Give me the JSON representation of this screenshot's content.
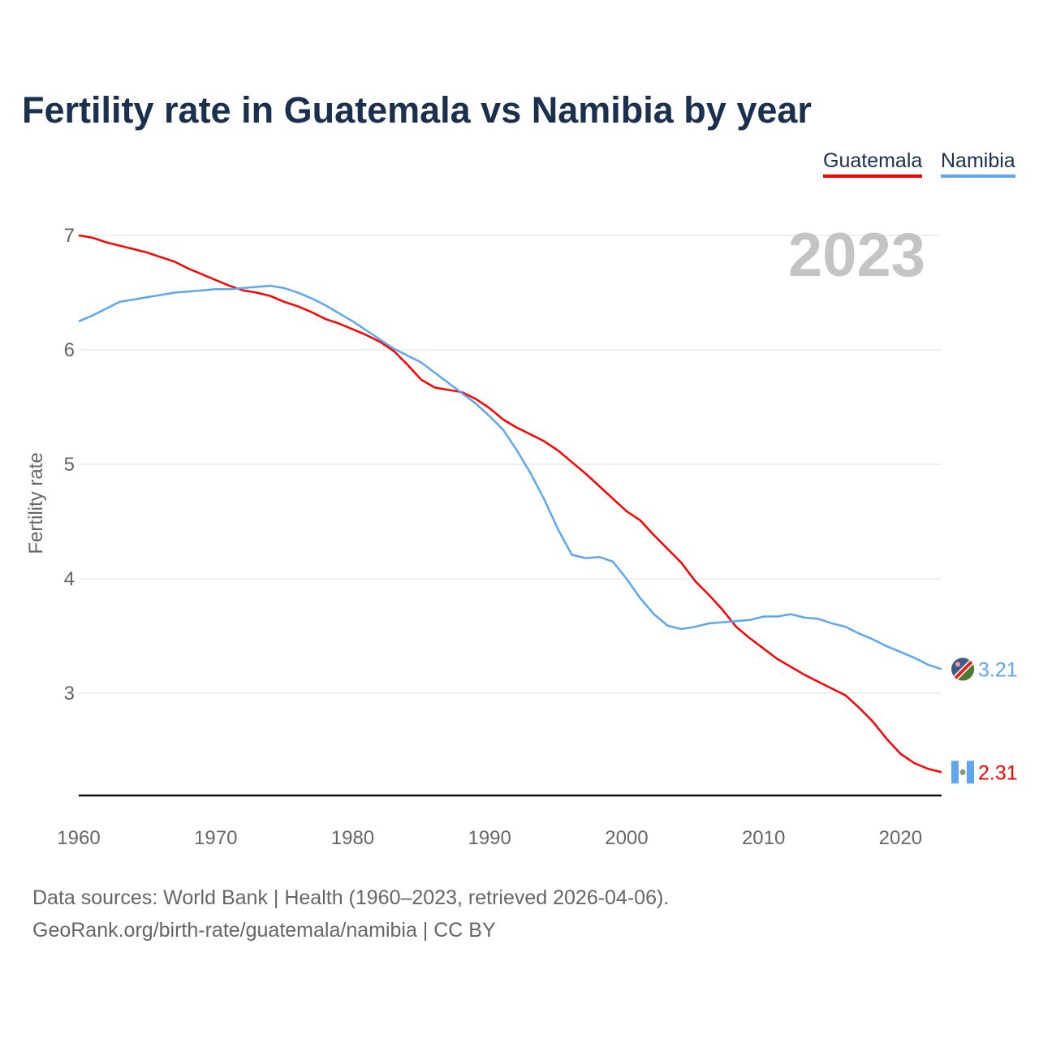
{
  "chart_data": {
    "type": "line",
    "title": "Fertility rate in Guatemala vs Namibia by year",
    "xlabel": "",
    "ylabel": "Fertility rate",
    "year_label": "2023",
    "xlim": [
      1960,
      2023
    ],
    "ylim": [
      2.1,
      7.1
    ],
    "xticks": [
      1960,
      1970,
      1980,
      1990,
      2000,
      2010,
      2020
    ],
    "yticks": [
      3,
      4,
      5,
      6,
      7
    ],
    "grid": true,
    "legend_placement": "top-right",
    "x_start": 1960,
    "series": [
      {
        "name": "Guatemala",
        "color": "#ff0000",
        "end_label": "2.31",
        "flag": "guatemala-flag",
        "values": [
          7.0,
          6.98,
          6.94,
          6.91,
          6.88,
          6.85,
          6.81,
          6.77,
          6.71,
          6.66,
          6.61,
          6.56,
          6.52,
          6.5,
          6.47,
          6.42,
          6.38,
          6.33,
          6.27,
          6.23,
          6.18,
          6.13,
          6.07,
          5.99,
          5.87,
          5.74,
          5.67,
          5.65,
          5.63,
          5.57,
          5.49,
          5.39,
          5.32,
          5.26,
          5.2,
          5.12,
          5.02,
          4.92,
          4.81,
          4.7,
          4.59,
          4.51,
          4.38,
          4.26,
          4.14,
          3.98,
          3.86,
          3.73,
          3.58,
          3.48,
          3.39,
          3.3,
          3.23,
          3.16,
          3.1,
          3.04,
          2.98,
          2.87,
          2.75,
          2.6,
          2.47,
          2.39,
          2.34,
          2.31
        ]
      },
      {
        "name": "Namibia",
        "color": "#5ea7ee",
        "end_label": "3.21",
        "flag": "namibia-flag",
        "values": [
          6.25,
          6.3,
          6.36,
          6.42,
          6.44,
          6.46,
          6.48,
          6.5,
          6.51,
          6.52,
          6.53,
          6.53,
          6.54,
          6.55,
          6.56,
          6.54,
          6.5,
          6.45,
          6.39,
          6.32,
          6.25,
          6.17,
          6.09,
          6.01,
          5.95,
          5.89,
          5.8,
          5.71,
          5.62,
          5.53,
          5.42,
          5.3,
          5.12,
          4.92,
          4.69,
          4.43,
          4.21,
          4.18,
          4.19,
          4.15,
          4.0,
          3.83,
          3.69,
          3.59,
          3.56,
          3.58,
          3.61,
          3.62,
          3.63,
          3.64,
          3.67,
          3.67,
          3.69,
          3.66,
          3.65,
          3.61,
          3.58,
          3.52,
          3.47,
          3.41,
          3.36,
          3.31,
          3.25,
          3.21
        ]
      }
    ]
  },
  "footer": {
    "line1": "Data sources: World Bank | Health (1960–2023, retrieved 2026-04-06).",
    "line2": "GeoRank.org/birth-rate/guatemala/namibia | CC BY"
  }
}
